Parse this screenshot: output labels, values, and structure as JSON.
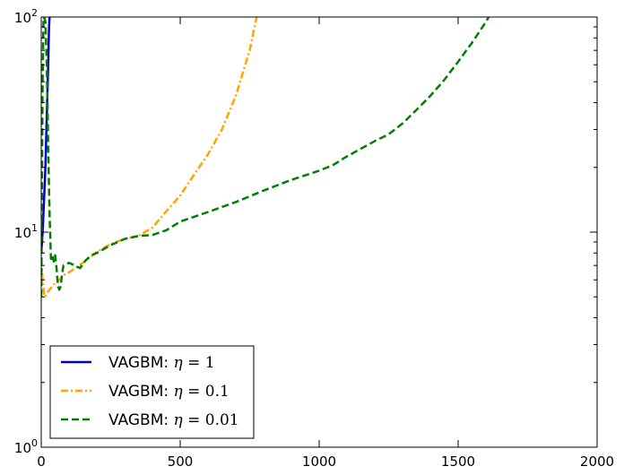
{
  "chart_data": {
    "type": "line",
    "title": "",
    "xlabel": "",
    "ylabel": "",
    "xlim": [
      0,
      2000
    ],
    "ylim": [
      1,
      100
    ],
    "yscale": "log",
    "grid": false,
    "legend_position": "bottom-left",
    "x_ticks": [
      0,
      500,
      1000,
      1500,
      2000
    ],
    "x_tick_labels": [
      "0",
      "500",
      "1000",
      "1500",
      "2000"
    ],
    "y_ticks": [
      1,
      10,
      100
    ],
    "y_tick_labels": [
      {
        "base": "10",
        "exp": "0"
      },
      {
        "base": "10",
        "exp": "1"
      },
      {
        "base": "10",
        "exp": "2"
      }
    ],
    "series": [
      {
        "name": "VAGBM: η = 1",
        "legend_prefix": "VAGBM: ",
        "legend_var": "η",
        "legend_eq": " = 1",
        "color": "#0000cc",
        "style": "solid",
        "points": [
          [
            0,
            8
          ],
          [
            5,
            10
          ],
          [
            10,
            14
          ],
          [
            15,
            20
          ],
          [
            20,
            35
          ],
          [
            25,
            60
          ],
          [
            28,
            90
          ],
          [
            30,
            100
          ]
        ]
      },
      {
        "name": "VAGBM: η = 0.1",
        "legend_prefix": "VAGBM: ",
        "legend_var": "η",
        "legend_eq": " = 0.1",
        "color": "#ffa500",
        "style": "dashdot",
        "points": [
          [
            0,
            7.5
          ],
          [
            5,
            6
          ],
          [
            10,
            5.2
          ],
          [
            15,
            5
          ],
          [
            20,
            5.2
          ],
          [
            30,
            5.4
          ],
          [
            40,
            5.6
          ],
          [
            50,
            5.8
          ],
          [
            60,
            5.9
          ],
          [
            70,
            6.1
          ],
          [
            80,
            6.3
          ],
          [
            100,
            6.5
          ],
          [
            150,
            7.2
          ],
          [
            200,
            8.1
          ],
          [
            250,
            8.8
          ],
          [
            300,
            9.3
          ],
          [
            350,
            9.6
          ],
          [
            400,
            10.5
          ],
          [
            450,
            12.5
          ],
          [
            500,
            14.8
          ],
          [
            550,
            18.5
          ],
          [
            600,
            23
          ],
          [
            650,
            30
          ],
          [
            700,
            43
          ],
          [
            750,
            70
          ],
          [
            775,
            100
          ]
        ]
      },
      {
        "name": "VAGBM: η = 0.01",
        "legend_prefix": "VAGBM: ",
        "legend_var": "η",
        "legend_eq": " = 0.01",
        "color": "#007f00",
        "style": "dashed",
        "points": [
          [
            0,
            5
          ],
          [
            5,
            50
          ],
          [
            8,
            95
          ],
          [
            10,
            100
          ],
          [
            15,
            95
          ],
          [
            20,
            60
          ],
          [
            25,
            25
          ],
          [
            30,
            12
          ],
          [
            35,
            7.5
          ],
          [
            40,
            7.8
          ],
          [
            45,
            7.3
          ],
          [
            50,
            7.8
          ],
          [
            55,
            6.8
          ],
          [
            60,
            5.6
          ],
          [
            65,
            5.4
          ],
          [
            70,
            5.6
          ],
          [
            75,
            6.4
          ],
          [
            80,
            7.0
          ],
          [
            100,
            7.2
          ],
          [
            120,
            7.0
          ],
          [
            140,
            6.8
          ],
          [
            160,
            7.4
          ],
          [
            180,
            7.8
          ],
          [
            200,
            8.0
          ],
          [
            250,
            8.7
          ],
          [
            300,
            9.3
          ],
          [
            350,
            9.6
          ],
          [
            400,
            9.7
          ],
          [
            450,
            10.2
          ],
          [
            500,
            11.2
          ],
          [
            600,
            12.4
          ],
          [
            700,
            13.8
          ],
          [
            800,
            15.6
          ],
          [
            900,
            17.5
          ],
          [
            1000,
            19.3
          ],
          [
            1050,
            20.5
          ],
          [
            1100,
            22.5
          ],
          [
            1200,
            26.5
          ],
          [
            1250,
            28.5
          ],
          [
            1300,
            32
          ],
          [
            1350,
            37
          ],
          [
            1400,
            43
          ],
          [
            1450,
            51
          ],
          [
            1500,
            62
          ],
          [
            1550,
            76
          ],
          [
            1600,
            95
          ],
          [
            1610,
            100
          ]
        ]
      }
    ]
  }
}
